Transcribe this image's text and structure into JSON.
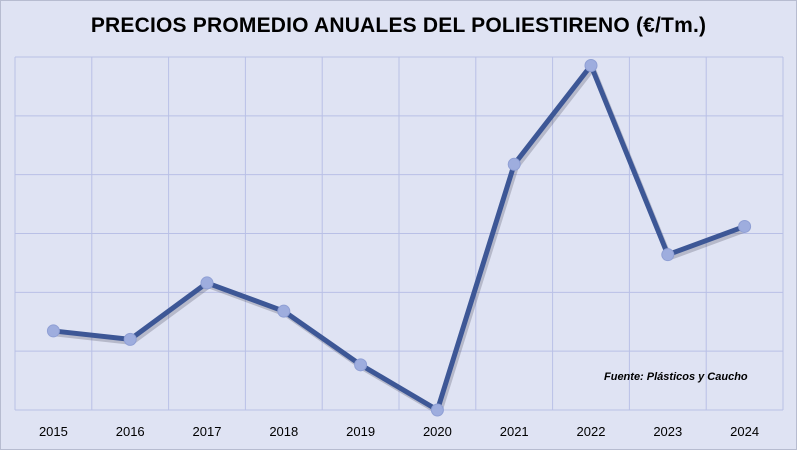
{
  "chart_data": {
    "type": "line",
    "title": "PRECIOS PROMEDIO ANUALES DEL POLIESTIRENO (€/Tm.)",
    "xlabel": "",
    "ylabel": "",
    "categories": [
      "2015",
      "2016",
      "2017",
      "2018",
      "2019",
      "2020",
      "2021",
      "2022",
      "2023",
      "2024"
    ],
    "series": [
      {
        "values": [
          1250,
          1220,
          1420,
          1320,
          1130,
          970,
          1840,
          2190,
          1520,
          1620
        ]
      }
    ],
    "ylim": [
      970,
      2220
    ],
    "grid": true,
    "y_tick_labels_shown": false,
    "source": "Fuente: Plásticos y Caucho",
    "colors": {
      "background": "#dfe3f3",
      "grid": "#b9c0e6",
      "line": "#3d5796",
      "marker": "#9eadde"
    }
  }
}
